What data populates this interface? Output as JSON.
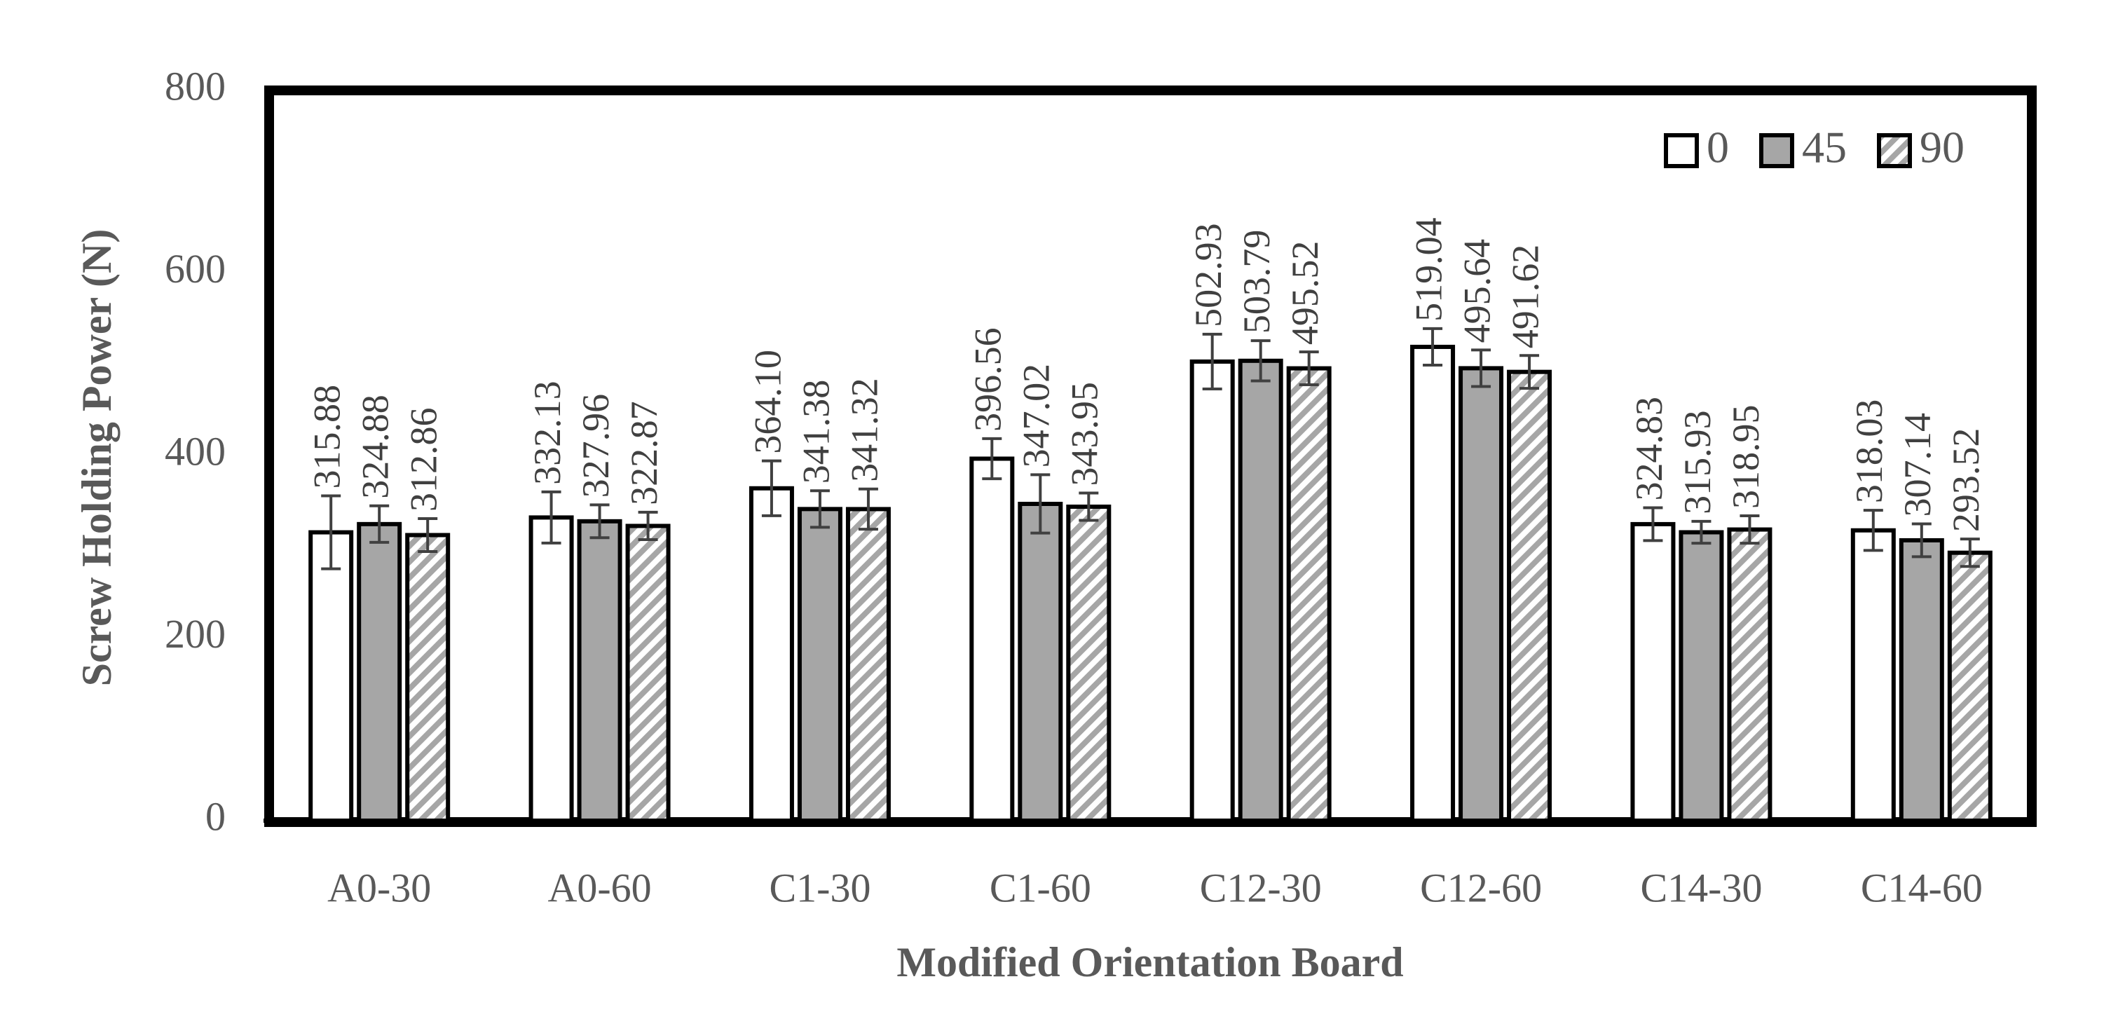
{
  "chart_data": {
    "type": "bar",
    "x_label": "Modified Orientation Board",
    "y_label": "Screw Holding Power (N)",
    "categories": [
      "A0-30",
      "A0-60",
      "C1-30",
      "C1-60",
      "C12-30",
      "C12-60",
      "C14-30",
      "C14-60"
    ],
    "series": [
      {
        "name": "0",
        "color": "#ffffff",
        "pattern": "solid",
        "values": [
          315.88,
          332.13,
          364.1,
          396.56,
          502.93,
          519.04,
          324.83,
          318.03
        ],
        "value_labels": [
          "315.88",
          "332.13",
          "364.10",
          "396.56",
          "502.93",
          "519.04",
          "324.83",
          "318.03"
        ],
        "errors": [
          40,
          28,
          30,
          22,
          30,
          20,
          18,
          22
        ]
      },
      {
        "name": "45",
        "color": "#a6a6a6",
        "pattern": "solid",
        "values": [
          324.88,
          327.96,
          341.38,
          347.02,
          503.79,
          495.64,
          315.93,
          307.14
        ],
        "value_labels": [
          "324.88",
          "327.96",
          "341.38",
          "347.02",
          "503.79",
          "495.64",
          "315.93",
          "307.14"
        ],
        "errors": [
          20,
          18,
          20,
          32,
          22,
          20,
          12,
          18
        ]
      },
      {
        "name": "90",
        "color": "#a6a6a6",
        "pattern": "hatch",
        "values": [
          312.86,
          322.87,
          341.32,
          343.95,
          495.52,
          491.62,
          318.95,
          293.52
        ],
        "value_labels": [
          "312.86",
          "322.87",
          "341.32",
          "343.95",
          "495.52",
          "491.62",
          "318.95",
          "293.52"
        ],
        "errors": [
          18,
          15,
          22,
          15,
          18,
          18,
          15,
          15
        ]
      }
    ],
    "ylim": [
      0,
      800
    ],
    "yticks": [
      0,
      200,
      400,
      600,
      800
    ],
    "grid": false,
    "legend": "top-right"
  }
}
